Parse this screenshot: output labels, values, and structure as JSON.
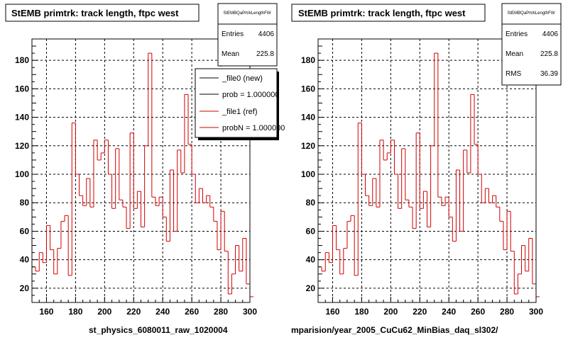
{
  "chart_data": [
    {
      "type": "histogram",
      "title": "StEMB primtrk: track length, ftpc west",
      "xlim": [
        150,
        300
      ],
      "ylim": [
        10,
        195
      ],
      "x_ticks": [
        160,
        180,
        200,
        220,
        240,
        260,
        280,
        300
      ],
      "y_ticks": [
        20,
        40,
        60,
        80,
        100,
        120,
        140,
        160,
        180
      ],
      "grid": true,
      "bin_width": 2.5,
      "series": [
        {
          "color": "#d00000",
          "values": [
            35,
            32,
            45,
            38,
            64,
            47,
            30,
            48,
            67,
            71,
            29,
            136,
            100,
            85,
            78,
            97,
            77,
            124,
            110,
            115,
            124,
            100,
            76,
            118,
            82,
            77,
            62,
            129,
            76,
            88,
            63,
            120,
            185,
            84,
            78,
            84,
            70,
            53,
            103,
            60,
            117,
            101,
            156,
            121,
            100,
            80,
            90,
            80,
            85,
            77,
            67,
            47,
            74,
            46,
            16,
            30,
            50,
            32,
            55,
            23,
            14
          ]
        }
      ],
      "stats": {
        "name": "StEMBQaPrtrkLengthFW",
        "rows": [
          {
            "label": "Entries",
            "value": "4406"
          },
          {
            "label": "Mean",
            "value": "225.8"
          }
        ]
      },
      "legend": {
        "entries": [
          {
            "label": "_file0 (new)",
            "color": "#000000"
          },
          {
            "label": "prob = 1.000000",
            "color": "#000000"
          },
          {
            "label": "_file1 (ref)",
            "color": "#d00000"
          },
          {
            "label": "probN = 1.000000",
            "color": "#d00000"
          }
        ]
      },
      "footer": "st_physics_6080011_raw_1020004"
    },
    {
      "type": "histogram",
      "title": "StEMB primtrk: track length, ftpc west",
      "xlim": [
        150,
        300
      ],
      "ylim": [
        10,
        195
      ],
      "x_ticks": [
        160,
        180,
        200,
        220,
        240,
        260,
        280,
        300
      ],
      "y_ticks": [
        20,
        40,
        60,
        80,
        100,
        120,
        140,
        160,
        180
      ],
      "grid": true,
      "bin_width": 2.5,
      "series": [
        {
          "color": "#d00000",
          "values": [
            35,
            32,
            45,
            38,
            64,
            47,
            30,
            48,
            67,
            71,
            29,
            136,
            100,
            85,
            78,
            97,
            77,
            124,
            110,
            115,
            124,
            100,
            76,
            118,
            82,
            77,
            62,
            129,
            76,
            88,
            63,
            120,
            185,
            84,
            78,
            84,
            70,
            53,
            103,
            60,
            117,
            101,
            156,
            121,
            100,
            80,
            90,
            80,
            85,
            77,
            67,
            47,
            74,
            46,
            16,
            30,
            50,
            32,
            55,
            23,
            14
          ]
        }
      ],
      "stats": {
        "name": "StEMBQaPrtrkLengthFW",
        "rows": [
          {
            "label": "Entries",
            "value": "4406"
          },
          {
            "label": "Mean",
            "value": "225.8"
          },
          {
            "label": "RMS",
            "value": "36.39"
          }
        ]
      },
      "footer": "mparision/year_2005_CuCu62_MinBias_daq_sl302/"
    }
  ]
}
